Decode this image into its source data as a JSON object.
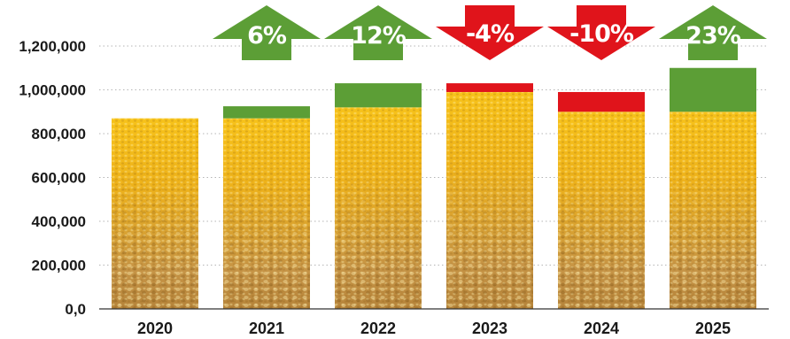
{
  "chart_data": {
    "type": "bar",
    "categories": [
      "2020",
      "2021",
      "2022",
      "2023",
      "2024",
      "2025"
    ],
    "series": [
      {
        "name": "",
        "values": [
          870000,
          925000,
          1030000,
          1030000,
          990000,
          1100000
        ]
      }
    ],
    "base_values": [
      870000,
      870000,
      920000,
      990000,
      900000,
      900000
    ],
    "changes": [
      {
        "label": "",
        "direction": "none"
      },
      {
        "label": "6%",
        "direction": "up"
      },
      {
        "label": "12%",
        "direction": "up"
      },
      {
        "label": "-4%",
        "direction": "down"
      },
      {
        "label": "-10%",
        "direction": "down"
      },
      {
        "label": "23%",
        "direction": "up"
      }
    ],
    "y_ticks": [
      "0,0",
      "200,000",
      "400,000",
      "600,000",
      "800,000",
      "1,000,000",
      "1,200,000"
    ],
    "y_tick_values": [
      0,
      200000,
      400000,
      600000,
      800000,
      1000000,
      1200000
    ],
    "ylim": [
      0,
      1200000
    ],
    "grid": true,
    "title": "",
    "xlabel": "",
    "ylabel": "",
    "colors": {
      "increase": "#5c9e36",
      "decrease": "#e0141b",
      "grid": "#b5b5b5",
      "axis": "#333333",
      "corn_light": "#f2c233",
      "corn_mid": "#e6a613",
      "corn_dark": "#b98812"
    }
  }
}
